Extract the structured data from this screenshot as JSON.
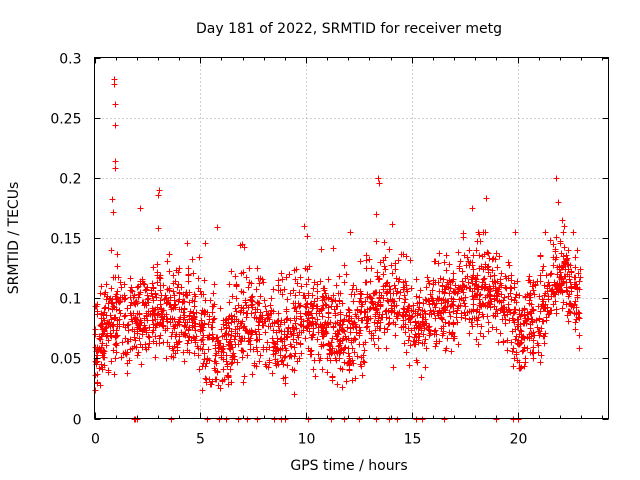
{
  "chart_data": {
    "type": "scatter",
    "title": "Day 181 of 2022, SRMTID for receiver metg",
    "xlabel": "GPS time / hours",
    "ylabel": "SRMTID / TECUs",
    "xlim": [
      0,
      24.3
    ],
    "ylim": [
      0,
      0.3
    ],
    "x_ticks": [
      0,
      5,
      10,
      15,
      20
    ],
    "x_tick_labels": [
      "0",
      "5",
      "10",
      "15",
      "20"
    ],
    "y_ticks": [
      0,
      0.05,
      0.1,
      0.15,
      0.2,
      0.25,
      0.3
    ],
    "y_tick_labels": [
      "0",
      "0.05",
      "0.1",
      "0.15",
      "0.2",
      "0.25",
      "0.3"
    ],
    "grid": true,
    "marker": "plus",
    "color": "#ff0000",
    "series": [
      {
        "name": "SRMTID",
        "x_range": [
          0.0,
          23.0
        ],
        "typical_y_range": [
          0.03,
          0.14
        ],
        "baseline_profile": [
          [
            0.0,
            0.06
          ],
          [
            1.0,
            0.085
          ],
          [
            2.0,
            0.08
          ],
          [
            3.0,
            0.09
          ],
          [
            4.0,
            0.085
          ],
          [
            5.0,
            0.07
          ],
          [
            6.0,
            0.06
          ],
          [
            7.0,
            0.08
          ],
          [
            8.0,
            0.075
          ],
          [
            9.0,
            0.07
          ],
          [
            10.0,
            0.085
          ],
          [
            11.0,
            0.075
          ],
          [
            12.0,
            0.065
          ],
          [
            13.0,
            0.09
          ],
          [
            14.0,
            0.1
          ],
          [
            15.0,
            0.08
          ],
          [
            16.0,
            0.09
          ],
          [
            17.0,
            0.1
          ],
          [
            18.0,
            0.11
          ],
          [
            19.0,
            0.1
          ],
          [
            20.0,
            0.075
          ],
          [
            21.0,
            0.08
          ],
          [
            22.0,
            0.12
          ],
          [
            23.0,
            0.1
          ]
        ],
        "notable_points": [
          [
            0.9,
            0.282
          ],
          [
            0.92,
            0.278
          ],
          [
            0.95,
            0.261
          ],
          [
            0.95,
            0.244
          ],
          [
            0.97,
            0.214
          ],
          [
            0.98,
            0.208
          ],
          [
            0.85,
            0.182
          ],
          [
            0.88,
            0.172
          ],
          [
            2.15,
            0.175
          ],
          [
            3.05,
            0.19
          ],
          [
            3.0,
            0.186
          ],
          [
            3.0,
            0.158
          ],
          [
            5.8,
            0.159
          ],
          [
            6.9,
            0.144
          ],
          [
            9.9,
            0.16
          ],
          [
            13.4,
            0.2
          ],
          [
            13.45,
            0.196
          ],
          [
            13.3,
            0.17
          ],
          [
            14.05,
            0.162
          ],
          [
            18.5,
            0.183
          ],
          [
            17.85,
            0.175
          ],
          [
            21.8,
            0.2
          ],
          [
            21.9,
            0.18
          ],
          [
            22.1,
            0.165
          ],
          [
            22.2,
            0.16
          ]
        ],
        "zero_points_x": [
          1.85,
          1.9,
          2.0,
          3.6,
          5.3,
          5.9,
          6.2,
          6.8,
          7.2,
          7.7,
          8.5,
          8.8,
          9.0,
          10.1,
          11.2,
          11.8,
          12.5,
          13.3,
          13.9,
          14.3,
          15.2,
          15.5,
          16.5,
          19.0,
          19.8,
          20.0
        ]
      }
    ]
  }
}
